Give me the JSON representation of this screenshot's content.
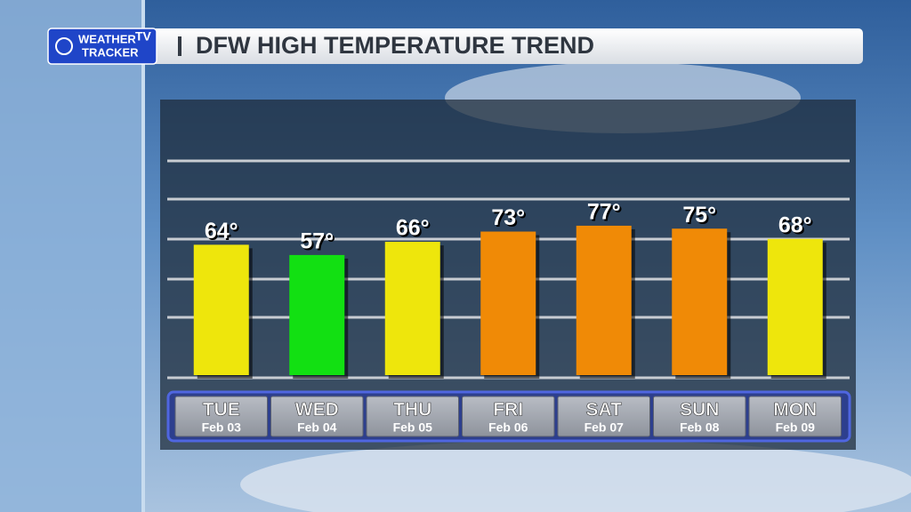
{
  "logo": {
    "line1": "WEATHER",
    "badge": "TV",
    "line2": "TRACKER"
  },
  "chart_data": {
    "type": "bar",
    "title": "DFW HIGH TEMPERATURE TREND",
    "categories": [
      "TUE",
      "WED",
      "THU",
      "FRI",
      "SAT",
      "SUN",
      "MON"
    ],
    "dates": [
      "Feb 03",
      "Feb 04",
      "Feb 05",
      "Feb 06",
      "Feb 07",
      "Feb 08",
      "Feb 09"
    ],
    "values": [
      64,
      57,
      66,
      73,
      77,
      75,
      68
    ],
    "value_labels": [
      "64°",
      "57°",
      "66°",
      "73°",
      "77°",
      "75°",
      "68°"
    ],
    "colors": [
      "#eee60c",
      "#12e012",
      "#eee60c",
      "#f08a06",
      "#f08a06",
      "#f08a06",
      "#eee60c"
    ],
    "ylim": [
      -25,
      134
    ]
  }
}
